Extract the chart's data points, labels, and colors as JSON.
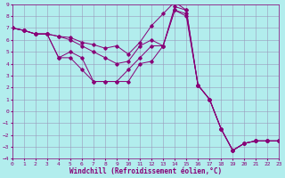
{
  "xlabel": "Windchill (Refroidissement éolien,°C)",
  "background_color": "#b2eded",
  "grid_color": "#9999bb",
  "line_color": "#880077",
  "xlim": [
    0,
    23
  ],
  "ylim": [
    -4,
    9
  ],
  "x_ticks": [
    0,
    1,
    2,
    3,
    4,
    5,
    6,
    7,
    8,
    9,
    10,
    11,
    12,
    13,
    14,
    15,
    16,
    17,
    18,
    19,
    20,
    21,
    22,
    23
  ],
  "y_ticks": [
    -4,
    -3,
    -2,
    -1,
    0,
    1,
    2,
    3,
    4,
    5,
    6,
    7,
    8,
    9
  ],
  "series": [
    [
      7.0,
      6.8,
      6.5,
      6.5,
      6.3,
      6.2,
      5.8,
      5.6,
      5.3,
      5.5,
      4.8,
      5.8,
      7.2,
      8.2,
      9.2,
      8.5,
      2.2,
      1.0,
      -1.5,
      -3.3,
      -2.7,
      -2.5,
      -2.5,
      -2.5
    ],
    [
      7.0,
      6.8,
      6.5,
      6.5,
      6.3,
      6.0,
      5.5,
      5.0,
      4.5,
      4.0,
      4.2,
      5.5,
      6.0,
      5.5,
      8.8,
      8.5,
      2.2,
      1.0,
      -1.5,
      -3.3,
      -2.7,
      -2.5,
      -2.5,
      -2.5
    ],
    [
      7.0,
      6.8,
      6.5,
      6.5,
      4.5,
      4.5,
      3.5,
      2.5,
      2.5,
      2.5,
      2.5,
      4.0,
      4.2,
      5.5,
      8.5,
      8.0,
      2.2,
      1.0,
      -1.5,
      -3.3,
      -2.7,
      -2.5,
      -2.5,
      -2.5
    ],
    [
      7.0,
      6.8,
      6.5,
      6.5,
      4.5,
      5.0,
      4.5,
      2.5,
      2.5,
      2.5,
      3.5,
      4.5,
      5.5,
      5.5,
      8.5,
      8.2,
      2.2,
      1.0,
      -1.5,
      -3.3,
      -2.7,
      -2.5,
      -2.5,
      -2.5
    ]
  ],
  "marker": "D",
  "markersize": 1.8,
  "linewidth": 0.7,
  "tick_fontsize": 4.5,
  "label_fontsize": 5.5
}
